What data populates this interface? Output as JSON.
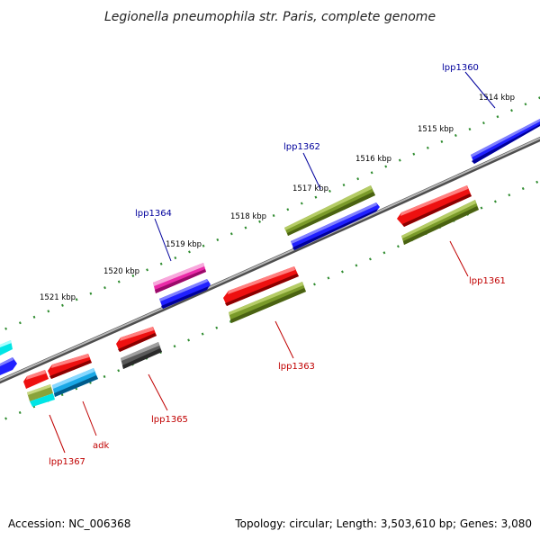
{
  "title": "Legionella pneumophila str. Paris, complete genome",
  "footer": {
    "accession": "Accession: NC_006368",
    "summary": "Topology: circular; Length: 3,503,610 bp; Genes: 3,080"
  },
  "tick_labels": [
    "1514 kbp",
    "1515 kbp",
    "1516 kbp",
    "1517 kbp",
    "1518 kbp",
    "1519 kbp",
    "1520 kbp",
    "1521 kbp"
  ],
  "genes_forward": [
    {
      "name": "lpp1360",
      "color": "#0000e6"
    },
    {
      "name": "lpp1362",
      "color": "#0000e6"
    },
    {
      "name": "lpp1364",
      "color": "#0000e6"
    }
  ],
  "genes_reverse": [
    {
      "name": "lpp1361",
      "color": "#e00000"
    },
    {
      "name": "lpp1363",
      "color": "#e00000"
    },
    {
      "name": "lpp1365",
      "color": "#e00000"
    },
    {
      "name": "adk",
      "color": "#00b4e0"
    },
    {
      "name": "lpp1367",
      "color": "#e00000"
    }
  ],
  "colors": {
    "forward_cds": "#0000e6",
    "reverse_cds": "#e00000",
    "olive": "#6b8e23",
    "magenta": "#e0199f",
    "cyan": "#00e5e5",
    "gray": "#555555",
    "tick": "#2e8b2e",
    "backbone": "#8a8a8a"
  }
}
